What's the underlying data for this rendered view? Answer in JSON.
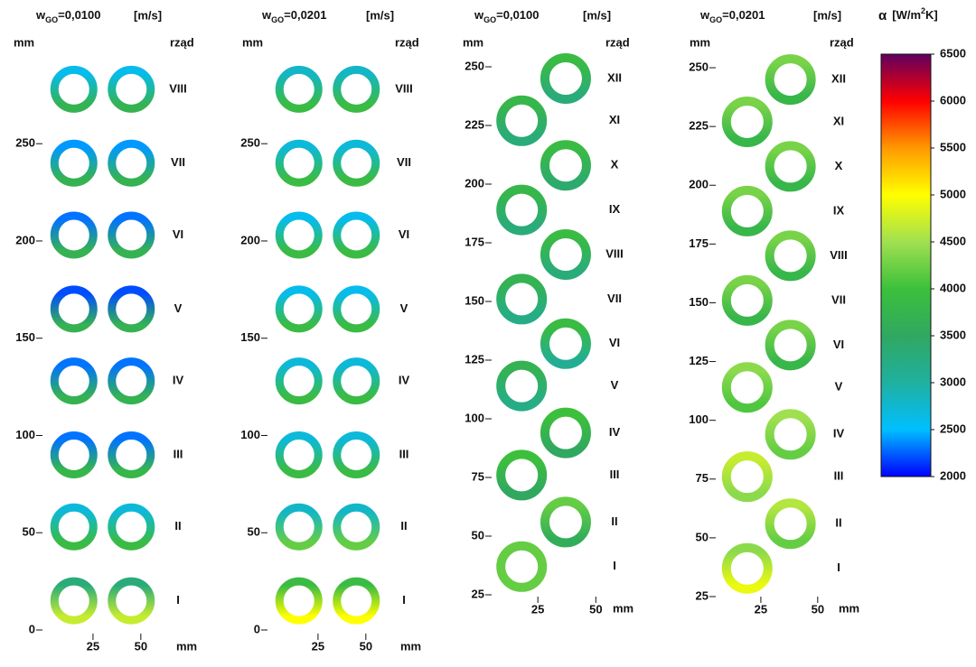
{
  "chart_data": [
    {
      "type": "ring-map",
      "title": {
        "prefix": "w",
        "sub": "GO",
        "value": "=0,0100",
        "unit": "[m/s]"
      },
      "ylabel": "mm",
      "row_label": "rząd",
      "xlabel": "mm",
      "ylim": [
        0,
        290
      ],
      "yticks": [
        0,
        50,
        100,
        150,
        200,
        250
      ],
      "xlim": [
        0,
        60
      ],
      "xticks": [
        25,
        50
      ],
      "rows": [
        {
          "label": "I",
          "y": 15,
          "rings": [
            {
              "x": 15,
              "top": 3300,
              "bottom": 4700
            },
            {
              "x": 45,
              "top": 3300,
              "bottom": 4700
            }
          ]
        },
        {
          "label": "II",
          "y": 53,
          "rings": [
            {
              "x": 15,
              "top": 2700,
              "bottom": 3900
            },
            {
              "x": 45,
              "top": 2700,
              "bottom": 3900
            }
          ]
        },
        {
          "label": "III",
          "y": 90,
          "rings": [
            {
              "x": 15,
              "top": 2300,
              "bottom": 3800
            },
            {
              "x": 45,
              "top": 2300,
              "bottom": 3800
            }
          ]
        },
        {
          "label": "IV",
          "y": 128,
          "rings": [
            {
              "x": 15,
              "top": 2300,
              "bottom": 3700
            },
            {
              "x": 45,
              "top": 2300,
              "bottom": 3700
            }
          ]
        },
        {
          "label": "V",
          "y": 165,
          "rings": [
            {
              "x": 15,
              "top": 2200,
              "bottom": 3700
            },
            {
              "x": 45,
              "top": 2200,
              "bottom": 3700
            }
          ]
        },
        {
          "label": "VI",
          "y": 203,
          "rings": [
            {
              "x": 15,
              "top": 2300,
              "bottom": 3700
            },
            {
              "x": 45,
              "top": 2300,
              "bottom": 3700
            }
          ]
        },
        {
          "label": "VII",
          "y": 240,
          "rings": [
            {
              "x": 15,
              "top": 2400,
              "bottom": 3700
            },
            {
              "x": 45,
              "top": 2400,
              "bottom": 3700
            }
          ]
        },
        {
          "label": "VIII",
          "y": 278,
          "rings": [
            {
              "x": 15,
              "top": 2600,
              "bottom": 3700
            },
            {
              "x": 45,
              "top": 2600,
              "bottom": 3700
            }
          ]
        }
      ]
    },
    {
      "type": "ring-map",
      "title": {
        "prefix": "w",
        "sub": "GO",
        "value": "=0,0201",
        "unit": "[m/s]"
      },
      "ylabel": "mm",
      "row_label": "rząd",
      "xlabel": "mm",
      "ylim": [
        0,
        290
      ],
      "yticks": [
        0,
        50,
        100,
        150,
        200,
        250
      ],
      "xlim": [
        0,
        60
      ],
      "xticks": [
        25,
        50
      ],
      "rows": [
        {
          "label": "I",
          "y": 15,
          "rings": [
            {
              "x": 15,
              "top": 3900,
              "bottom": 5000
            },
            {
              "x": 45,
              "top": 3900,
              "bottom": 5000
            }
          ]
        },
        {
          "label": "II",
          "y": 53,
          "rings": [
            {
              "x": 15,
              "top": 2800,
              "bottom": 4200
            },
            {
              "x": 45,
              "top": 2800,
              "bottom": 4200
            }
          ]
        },
        {
          "label": "III",
          "y": 90,
          "rings": [
            {
              "x": 15,
              "top": 2700,
              "bottom": 3900
            },
            {
              "x": 45,
              "top": 2700,
              "bottom": 3900
            }
          ]
        },
        {
          "label": "IV",
          "y": 128,
          "rings": [
            {
              "x": 15,
              "top": 2700,
              "bottom": 3900
            },
            {
              "x": 45,
              "top": 2700,
              "bottom": 3900
            }
          ]
        },
        {
          "label": "V",
          "y": 165,
          "rings": [
            {
              "x": 15,
              "top": 2600,
              "bottom": 3900
            },
            {
              "x": 45,
              "top": 2600,
              "bottom": 3900
            }
          ]
        },
        {
          "label": "VI",
          "y": 203,
          "rings": [
            {
              "x": 15,
              "top": 2600,
              "bottom": 3900
            },
            {
              "x": 45,
              "top": 2600,
              "bottom": 3900
            }
          ]
        },
        {
          "label": "VII",
          "y": 240,
          "rings": [
            {
              "x": 15,
              "top": 2700,
              "bottom": 3900
            },
            {
              "x": 45,
              "top": 2700,
              "bottom": 3900
            }
          ]
        },
        {
          "label": "VIII",
          "y": 278,
          "rings": [
            {
              "x": 15,
              "top": 2800,
              "bottom": 3900
            },
            {
              "x": 45,
              "top": 2800,
              "bottom": 3900
            }
          ]
        }
      ]
    },
    {
      "type": "ring-map",
      "title": {
        "prefix": "w",
        "sub": "GO",
        "value": "=0,0100",
        "unit": "[m/s]"
      },
      "ylabel": "mm",
      "row_label": "rząd",
      "xlabel": "mm",
      "ylim": [
        20,
        260
      ],
      "yticks": [
        25,
        50,
        75,
        100,
        125,
        150,
        175,
        200,
        225,
        250
      ],
      "xlim": [
        0,
        60
      ],
      "xticks": [
        25,
        50
      ],
      "rows": [
        {
          "label": "I",
          "y": 37,
          "rings": [
            {
              "x": 18,
              "top": 4200,
              "bottom": 4200
            }
          ]
        },
        {
          "label": "II",
          "y": 56,
          "rings": [
            {
              "x": 37,
              "top": 4200,
              "bottom": 3600
            }
          ]
        },
        {
          "label": "III",
          "y": 76,
          "rings": [
            {
              "x": 18,
              "top": 4000,
              "bottom": 3500
            }
          ]
        },
        {
          "label": "IV",
          "y": 94,
          "rings": [
            {
              "x": 37,
              "top": 4000,
              "bottom": 3500
            }
          ]
        },
        {
          "label": "V",
          "y": 114,
          "rings": [
            {
              "x": 18,
              "top": 3700,
              "bottom": 3200
            }
          ]
        },
        {
          "label": "VI",
          "y": 132,
          "rings": [
            {
              "x": 37,
              "top": 3900,
              "bottom": 3100
            }
          ]
        },
        {
          "label": "VII",
          "y": 151,
          "rings": [
            {
              "x": 18,
              "top": 3700,
              "bottom": 3200
            }
          ]
        },
        {
          "label": "VIII",
          "y": 170,
          "rings": [
            {
              "x": 37,
              "top": 3900,
              "bottom": 3300
            }
          ]
        },
        {
          "label": "IX",
          "y": 189,
          "rings": [
            {
              "x": 18,
              "top": 3800,
              "bottom": 3300
            }
          ]
        },
        {
          "label": "X",
          "y": 208,
          "rings": [
            {
              "x": 37,
              "top": 3900,
              "bottom": 3400
            }
          ]
        },
        {
          "label": "XI",
          "y": 227,
          "rings": [
            {
              "x": 18,
              "top": 3800,
              "bottom": 3300
            }
          ]
        },
        {
          "label": "XII",
          "y": 245,
          "rings": [
            {
              "x": 37,
              "top": 3900,
              "bottom": 3300
            }
          ]
        }
      ]
    },
    {
      "type": "ring-map",
      "title": {
        "prefix": "w",
        "sub": "GO",
        "value": "=0,0201",
        "unit": "[m/s]"
      },
      "ylabel": "mm",
      "row_label": "rząd",
      "xlabel": "mm",
      "ylim": [
        20,
        260
      ],
      "yticks": [
        25,
        50,
        75,
        100,
        125,
        150,
        175,
        200,
        225,
        250
      ],
      "xlim": [
        0,
        60
      ],
      "xticks": [
        25,
        50
      ],
      "rows": [
        {
          "label": "I",
          "y": 37,
          "rings": [
            {
              "x": 19,
              "top": 4400,
              "bottom": 4900
            }
          ]
        },
        {
          "label": "II",
          "y": 56,
          "rings": [
            {
              "x": 38,
              "top": 4600,
              "bottom": 4200
            }
          ]
        },
        {
          "label": "III",
          "y": 76,
          "rings": [
            {
              "x": 19,
              "top": 4700,
              "bottom": 4400
            }
          ]
        },
        {
          "label": "IV",
          "y": 94,
          "rings": [
            {
              "x": 38,
              "top": 4500,
              "bottom": 4200
            }
          ]
        },
        {
          "label": "V",
          "y": 114,
          "rings": [
            {
              "x": 19,
              "top": 4400,
              "bottom": 4100
            }
          ]
        },
        {
          "label": "VI",
          "y": 132,
          "rings": [
            {
              "x": 38,
              "top": 4300,
              "bottom": 3800
            }
          ]
        },
        {
          "label": "VII",
          "y": 151,
          "rings": [
            {
              "x": 19,
              "top": 4300,
              "bottom": 3800
            }
          ]
        },
        {
          "label": "VIII",
          "y": 170,
          "rings": [
            {
              "x": 38,
              "top": 4300,
              "bottom": 3800
            }
          ]
        },
        {
          "label": "IX",
          "y": 189,
          "rings": [
            {
              "x": 19,
              "top": 4300,
              "bottom": 3800
            }
          ]
        },
        {
          "label": "X",
          "y": 208,
          "rings": [
            {
              "x": 38,
              "top": 4300,
              "bottom": 3800
            }
          ]
        },
        {
          "label": "XI",
          "y": 227,
          "rings": [
            {
              "x": 19,
              "top": 4300,
              "bottom": 3800
            }
          ]
        },
        {
          "label": "XII",
          "y": 245,
          "rings": [
            {
              "x": 38,
              "top": 4300,
              "bottom": 3800
            }
          ]
        }
      ]
    }
  ],
  "colorbar": {
    "symbol": "α",
    "unit_pre": "[W/m",
    "unit_sup": "2",
    "unit_post": "K]",
    "lim": [
      2000,
      6500
    ],
    "ticks": [
      2000,
      2500,
      3000,
      3500,
      4000,
      4500,
      5000,
      5500,
      6000,
      6500
    ],
    "colormap": [
      {
        "value": 2000,
        "color": "#0000ff"
      },
      {
        "value": 2500,
        "color": "#00bfff"
      },
      {
        "value": 3000,
        "color": "#20b0a0"
      },
      {
        "value": 3500,
        "color": "#30a860"
      },
      {
        "value": 4000,
        "color": "#3cc03c"
      },
      {
        "value": 4500,
        "color": "#a0e050"
      },
      {
        "value": 5000,
        "color": "#ffff00"
      },
      {
        "value": 5500,
        "color": "#ff9900"
      },
      {
        "value": 6000,
        "color": "#ff0000"
      },
      {
        "value": 6500,
        "color": "#600060"
      }
    ]
  }
}
